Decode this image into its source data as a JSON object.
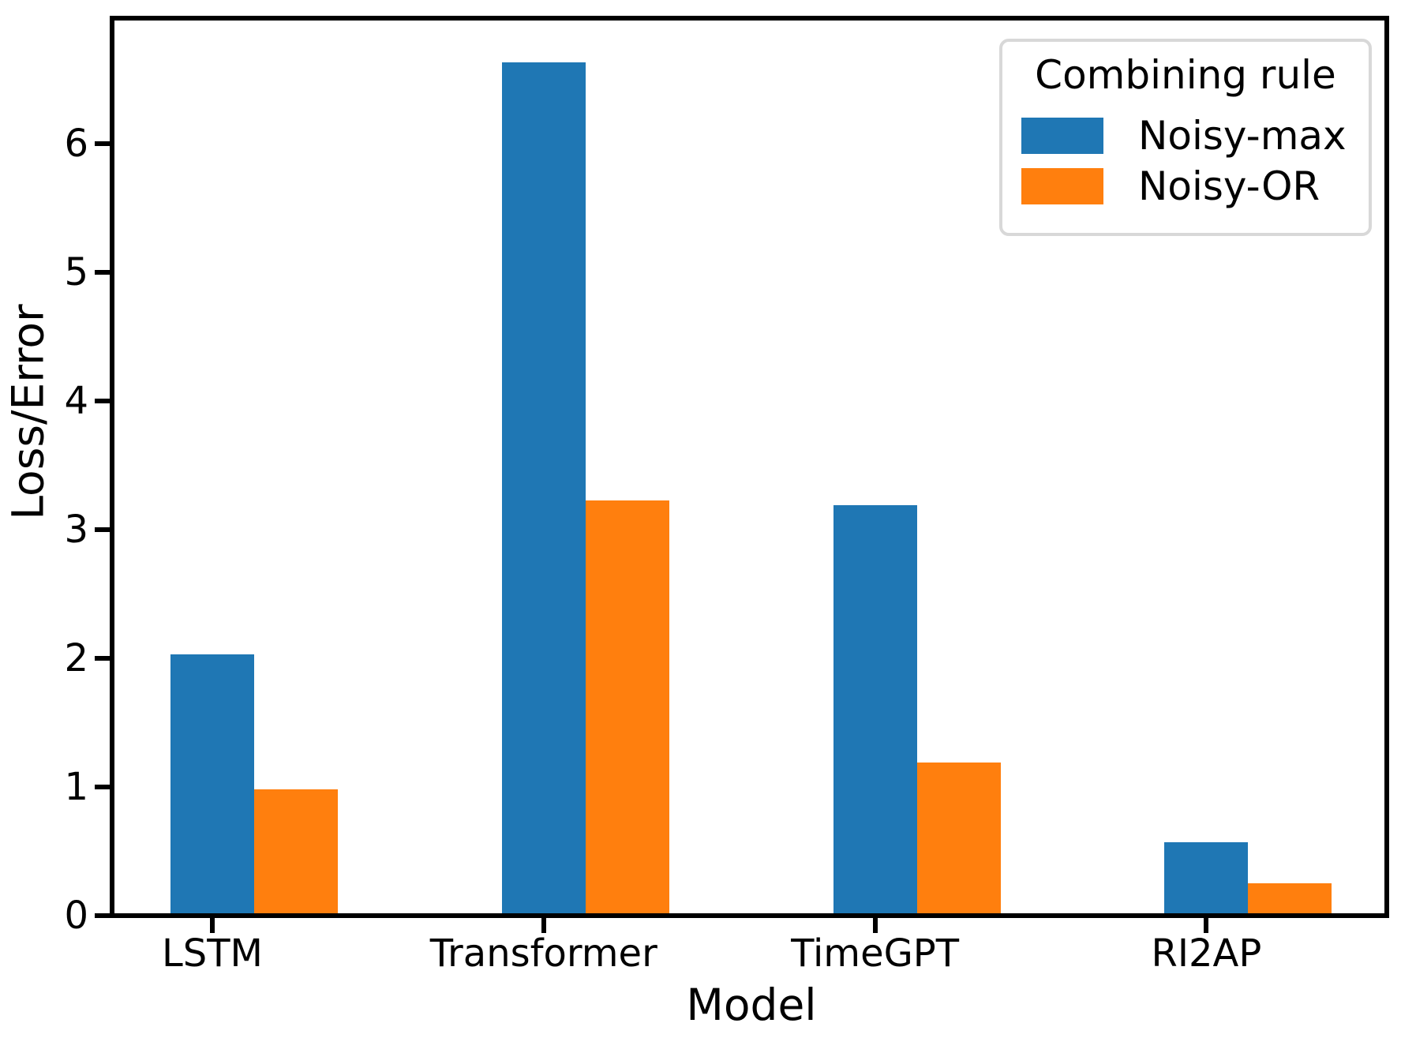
{
  "figure": {
    "background": "#ffffff",
    "axis_color": "#000000",
    "legend_border_color": "#d8d8d8"
  },
  "chart_data": {
    "type": "bar",
    "title": "",
    "xlabel": "Model",
    "ylabel": "Loss/Error",
    "categories": [
      "LSTM",
      "Transformer",
      "TimeGPT",
      "RI2AP"
    ],
    "series": [
      {
        "name": "Noisy-max",
        "color": "#1f77b4",
        "values": [
          2.03,
          6.63,
          3.19,
          0.57
        ]
      },
      {
        "name": "Noisy-OR",
        "color": "#ff7f0e",
        "values": [
          0.98,
          3.23,
          1.19,
          0.25
        ]
      }
    ],
    "legend_title": "Combining rule",
    "legend_position": "upper right",
    "yticks": [
      0,
      1,
      2,
      3,
      4,
      5,
      6
    ],
    "ylim": [
      0,
      6.97
    ],
    "grid": false
  }
}
